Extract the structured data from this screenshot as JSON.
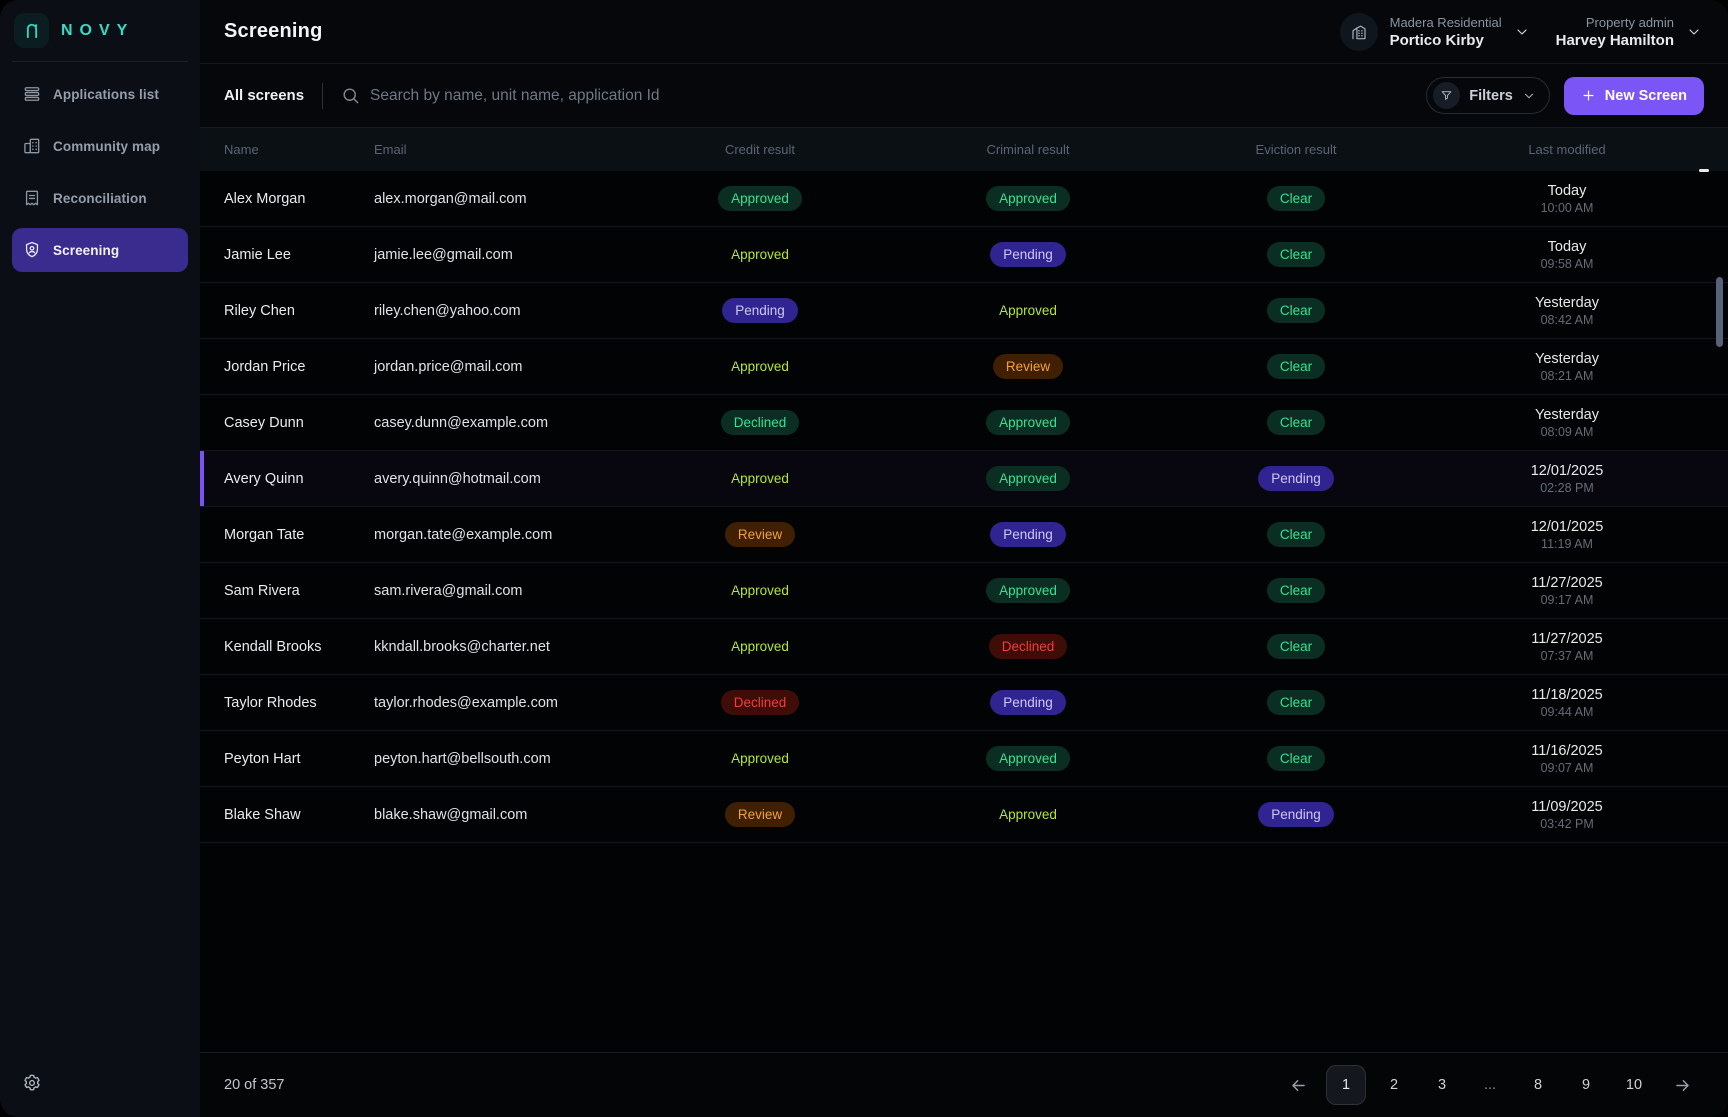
{
  "brand": {
    "name": "NOVY"
  },
  "sidebar": {
    "items": [
      {
        "label": "Applications list",
        "icon": "list-icon",
        "active": false
      },
      {
        "label": "Community map",
        "icon": "buildings-icon",
        "active": false
      },
      {
        "label": "Reconciliation",
        "icon": "receipt-icon",
        "active": false
      },
      {
        "label": "Screening",
        "icon": "person-badge-icon",
        "active": true
      }
    ]
  },
  "header": {
    "title": "Screening",
    "property": {
      "label": "Madera Residential",
      "name": "Portico Kirby"
    },
    "user": {
      "role": "Property admin",
      "name": "Harvey Hamilton"
    }
  },
  "toolbar": {
    "scope_label": "All screens",
    "search_placeholder": "Search by name, unit name, application Id",
    "filters_label": "Filters",
    "new_screen_label": "New Screen"
  },
  "table": {
    "columns": [
      "Name",
      "Email",
      "Credit result",
      "Criminal result",
      "Eviction result",
      "Last modified"
    ],
    "rows": [
      {
        "name": "Alex Morgan",
        "email": "alex.morgan@mail.com",
        "credit": {
          "label": "Approved",
          "style": "green-pill"
        },
        "criminal": {
          "label": "Approved",
          "style": "green-pill"
        },
        "eviction": {
          "label": "Clear",
          "style": "green-pill"
        },
        "date": "Today",
        "time": "10:00 AM",
        "selected": false
      },
      {
        "name": "Jamie Lee",
        "email": "jamie.lee@gmail.com",
        "credit": {
          "label": "Approved",
          "style": "lime-text"
        },
        "criminal": {
          "label": "Pending",
          "style": "indigo-pill"
        },
        "eviction": {
          "label": "Clear",
          "style": "green-pill"
        },
        "date": "Today",
        "time": "09:58 AM",
        "selected": false
      },
      {
        "name": "Riley Chen",
        "email": "riley.chen@yahoo.com",
        "credit": {
          "label": "Pending",
          "style": "indigo-pill"
        },
        "criminal": {
          "label": "Approved",
          "style": "lime-text"
        },
        "eviction": {
          "label": "Clear",
          "style": "green-pill"
        },
        "date": "Yesterday",
        "time": "08:42 AM",
        "selected": false
      },
      {
        "name": "Jordan Price",
        "email": "jordan.price@mail.com",
        "credit": {
          "label": "Approved",
          "style": "lime-text"
        },
        "criminal": {
          "label": "Review",
          "style": "amber-pill"
        },
        "eviction": {
          "label": "Clear",
          "style": "green-pill"
        },
        "date": "Yesterday",
        "time": "08:21 AM",
        "selected": false
      },
      {
        "name": "Casey Dunn",
        "email": "casey.dunn@example.com",
        "credit": {
          "label": "Declined",
          "style": "green-pill"
        },
        "criminal": {
          "label": "Approved",
          "style": "green-pill"
        },
        "eviction": {
          "label": "Clear",
          "style": "green-pill"
        },
        "date": "Yesterday",
        "time": "08:09 AM",
        "selected": false
      },
      {
        "name": "Avery Quinn",
        "email": "avery.quinn@hotmail.com",
        "credit": {
          "label": "Approved",
          "style": "lime-text"
        },
        "criminal": {
          "label": "Approved",
          "style": "green-pill"
        },
        "eviction": {
          "label": "Pending",
          "style": "indigo-pill"
        },
        "date": "12/01/2025",
        "time": "02:28 PM",
        "selected": true
      },
      {
        "name": "Morgan Tate",
        "email": "morgan.tate@example.com",
        "credit": {
          "label": "Review",
          "style": "amber-pill"
        },
        "criminal": {
          "label": "Pending",
          "style": "indigo-pill"
        },
        "eviction": {
          "label": "Clear",
          "style": "green-pill"
        },
        "date": "12/01/2025",
        "time": "11:19 AM",
        "selected": false
      },
      {
        "name": "Sam Rivera",
        "email": "sam.rivera@gmail.com",
        "credit": {
          "label": "Approved",
          "style": "lime-text"
        },
        "criminal": {
          "label": "Approved",
          "style": "green-pill"
        },
        "eviction": {
          "label": "Clear",
          "style": "green-pill"
        },
        "date": "11/27/2025",
        "time": "09:17 AM",
        "selected": false
      },
      {
        "name": "Kendall Brooks",
        "email": "kkndall.brooks@charter.net",
        "credit": {
          "label": "Approved",
          "style": "lime-text"
        },
        "criminal": {
          "label": "Declined",
          "style": "red-pill"
        },
        "eviction": {
          "label": "Clear",
          "style": "green-pill"
        },
        "date": "11/27/2025",
        "time": "07:37 AM",
        "selected": false
      },
      {
        "name": "Taylor Rhodes",
        "email": "taylor.rhodes@example.com",
        "credit": {
          "label": "Declined",
          "style": "red-pill"
        },
        "criminal": {
          "label": "Pending",
          "style": "indigo-pill"
        },
        "eviction": {
          "label": "Clear",
          "style": "green-pill"
        },
        "date": "11/18/2025",
        "time": "09:44 AM",
        "selected": false
      },
      {
        "name": "Peyton Hart",
        "email": "peyton.hart@bellsouth.com",
        "credit": {
          "label": "Approved",
          "style": "lime-text"
        },
        "criminal": {
          "label": "Approved",
          "style": "green-pill"
        },
        "eviction": {
          "label": "Clear",
          "style": "green-pill"
        },
        "date": "11/16/2025",
        "time": "09:07 AM",
        "selected": false
      },
      {
        "name": "Blake Shaw",
        "email": "blake.shaw@gmail.com",
        "credit": {
          "label": "Review",
          "style": "amber-pill"
        },
        "criminal": {
          "label": "Approved",
          "style": "lime-text"
        },
        "eviction": {
          "label": "Pending",
          "style": "indigo-pill"
        },
        "date": "11/09/2025",
        "time": "03:42 PM",
        "selected": false
      }
    ]
  },
  "footer": {
    "count_text": "20 of 357",
    "pages": [
      "1",
      "2",
      "3",
      "...",
      "8",
      "9",
      "10"
    ],
    "active_page": "1"
  },
  "colors": {
    "accent_purple": "#7b55f5",
    "active_nav_purple": "#3a2b8e",
    "brand_teal": "#35dcc6",
    "status_green_text": "#3ddf92",
    "status_green_bg": "#0a2f22",
    "status_lime": "#b4e63c",
    "status_indigo_text": "#cfc8f5",
    "status_indigo_bg": "#2f2490",
    "status_amber_text": "#f0a13c",
    "status_amber_bg": "#401f02",
    "status_red_text": "#ee4035",
    "status_red_bg": "#3f0d08"
  }
}
